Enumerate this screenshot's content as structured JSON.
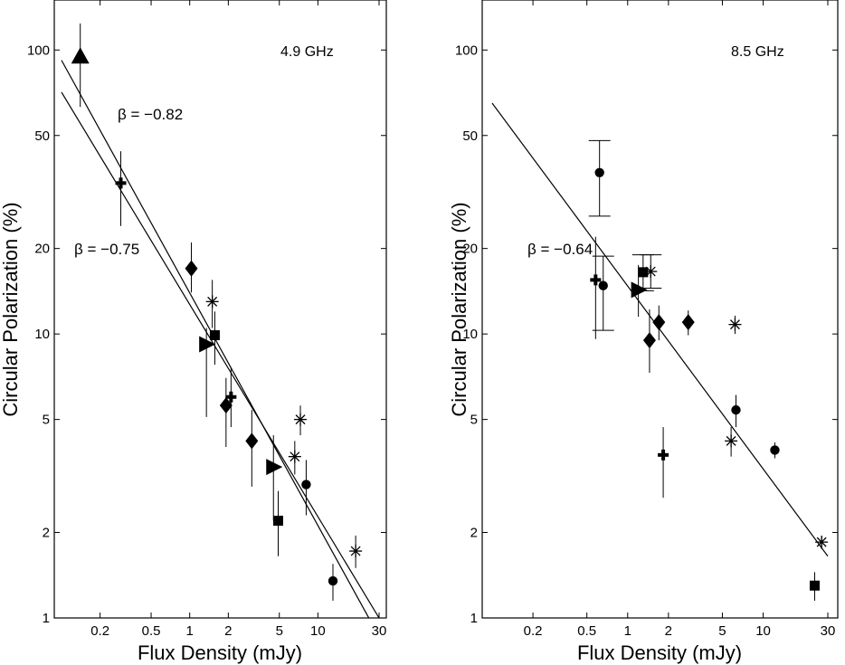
{
  "chart_data": [
    {
      "type": "scatter",
      "annotation": "4.9 GHz",
      "xlabel": "Flux Density (mJy)",
      "ylabel": "Circular Polarization (%)",
      "xscale": "log",
      "yscale": "log",
      "xlim": [
        0.1,
        30
      ],
      "ylim": [
        1,
        150
      ],
      "xticks": [
        {
          "v": 0.2,
          "t": "0.2"
        },
        {
          "v": 0.5,
          "t": "0.5"
        },
        {
          "v": 1,
          "t": "1"
        },
        {
          "v": 2,
          "t": "2"
        },
        {
          "v": 5,
          "t": "5"
        },
        {
          "v": 10,
          "t": "10"
        },
        {
          "v": 30,
          "t": "30"
        }
      ],
      "yticks": [
        {
          "v": 1,
          "t": "1"
        },
        {
          "v": 2,
          "t": "2"
        },
        {
          "v": 5,
          "t": "5"
        },
        {
          "v": 10,
          "t": "10"
        },
        {
          "v": 20,
          "t": "20"
        },
        {
          "v": 50,
          "t": "50"
        },
        {
          "v": 100,
          "t": "100"
        }
      ],
      "fits": [
        {
          "label": "β = −0.82",
          "beta": -0.82,
          "x_from": 0.1,
          "y_from": 92,
          "x_to": 30,
          "y_to": 0.86
        },
        {
          "label": "β = −0.75",
          "beta": -0.75,
          "x_from": 0.1,
          "y_from": 71,
          "x_to": 30,
          "y_to": 1.0
        }
      ],
      "points": [
        {
          "marker": "triangle-up",
          "x": 0.14,
          "y": 95,
          "ylo": 63,
          "yhi": 124
        },
        {
          "marker": "cross",
          "x": 0.29,
          "y": 34,
          "ylo": 24,
          "yhi": 44
        },
        {
          "marker": "diamond",
          "x": 1.03,
          "y": 17,
          "ylo": 14,
          "yhi": 21
        },
        {
          "marker": "asterisk",
          "x": 1.5,
          "y": 13,
          "ylo": 10.5,
          "yhi": 15.5
        },
        {
          "marker": "triangle-right",
          "x": 1.35,
          "y": 9.2,
          "ylo": 5.1,
          "yhi": 10.5
        },
        {
          "marker": "square",
          "x": 1.57,
          "y": 9.9,
          "ylo": 7.8,
          "yhi": 12
        },
        {
          "marker": "cross",
          "x": 2.1,
          "y": 6,
          "ylo": 4.7,
          "yhi": 7.6
        },
        {
          "marker": "diamond",
          "x": 1.92,
          "y": 5.6,
          "ylo": 4,
          "yhi": 7
        },
        {
          "marker": "diamond",
          "x": 3.05,
          "y": 4.2,
          "ylo": 2.9,
          "yhi": 5.4
        },
        {
          "marker": "triangle-right",
          "x": 4.5,
          "y": 3.4,
          "ylo": 2.2,
          "yhi": 4.4
        },
        {
          "marker": "asterisk",
          "x": 6.6,
          "y": 3.7,
          "ylo": 3.2,
          "yhi": 4.2
        },
        {
          "marker": "asterisk",
          "x": 7.3,
          "y": 5,
          "ylo": 4.4,
          "yhi": 5.6
        },
        {
          "marker": "circle",
          "x": 8.1,
          "y": 2.95,
          "ylo": 2.3,
          "yhi": 3.6
        },
        {
          "marker": "square",
          "x": 4.9,
          "y": 2.2,
          "ylo": 1.65,
          "yhi": 2.8
        },
        {
          "marker": "circle",
          "x": 13.1,
          "y": 1.35,
          "ylo": 1.15,
          "yhi": 1.55
        },
        {
          "marker": "asterisk",
          "x": 19.7,
          "y": 1.72,
          "ylo": 1.5,
          "yhi": 1.95
        }
      ]
    },
    {
      "type": "scatter",
      "annotation": "8.5 GHz",
      "xlabel": "Flux Density (mJy)",
      "ylabel": "Circular Polarization (%)",
      "xscale": "log",
      "yscale": "log",
      "xlim": [
        0.1,
        30
      ],
      "ylim": [
        1,
        150
      ],
      "xticks": [
        {
          "v": 0.2,
          "t": "0.2"
        },
        {
          "v": 0.5,
          "t": "0.5"
        },
        {
          "v": 1,
          "t": "1"
        },
        {
          "v": 2,
          "t": "2"
        },
        {
          "v": 5,
          "t": "5"
        },
        {
          "v": 10,
          "t": "10"
        },
        {
          "v": 30,
          "t": "30"
        }
      ],
      "yticks": [
        {
          "v": 1,
          "t": "1"
        },
        {
          "v": 2,
          "t": "2"
        },
        {
          "v": 5,
          "t": "5"
        },
        {
          "v": 10,
          "t": "10"
        },
        {
          "v": 20,
          "t": "20"
        },
        {
          "v": 50,
          "t": "50"
        },
        {
          "v": 100,
          "t": "100"
        }
      ],
      "fits": [
        {
          "label": "β = −0.64",
          "beta": -0.64,
          "x_from": 0.1,
          "y_from": 65,
          "x_to": 30,
          "y_to": 1.65
        }
      ],
      "points": [
        {
          "marker": "circle",
          "x": 0.62,
          "y": 37,
          "ylo": 26,
          "yhi": 48,
          "caps": true
        },
        {
          "marker": "cross",
          "x": 0.58,
          "y": 15.5,
          "ylo": 9.6,
          "yhi": 22
        },
        {
          "marker": "circle",
          "x": 0.66,
          "y": 14.8,
          "ylo": 10.3,
          "yhi": 18.8,
          "caps": true
        },
        {
          "marker": "square",
          "x": 1.3,
          "y": 16.5,
          "ylo": 14.2,
          "yhi": 19,
          "caps": true
        },
        {
          "marker": "asterisk",
          "x": 1.48,
          "y": 16.6,
          "ylo": 14.5,
          "yhi": 19,
          "caps": true
        },
        {
          "marker": "triangle-right",
          "x": 1.2,
          "y": 14.3,
          "ylo": 11.5,
          "yhi": 17.5
        },
        {
          "marker": "diamond",
          "x": 1.7,
          "y": 11,
          "ylo": 9.5,
          "yhi": 12.6
        },
        {
          "marker": "diamond",
          "x": 1.45,
          "y": 9.5,
          "ylo": 7.3,
          "yhi": 12.2
        },
        {
          "marker": "diamond",
          "x": 2.8,
          "y": 11,
          "ylo": 9.9,
          "yhi": 12.1
        },
        {
          "marker": "asterisk",
          "x": 6.2,
          "y": 10.8,
          "ylo": 10,
          "yhi": 11.6
        },
        {
          "marker": "circle",
          "x": 6.3,
          "y": 5.4,
          "ylo": 4.7,
          "yhi": 6.1
        },
        {
          "marker": "asterisk",
          "x": 5.8,
          "y": 4.2,
          "ylo": 3.7,
          "yhi": 4.7
        },
        {
          "marker": "cross",
          "x": 1.83,
          "y": 3.75,
          "ylo": 2.65,
          "yhi": 4.7
        },
        {
          "marker": "circle",
          "x": 12.2,
          "y": 3.9,
          "ylo": 3.65,
          "yhi": 4.15
        },
        {
          "marker": "asterisk",
          "x": 27,
          "y": 1.85,
          "ylo": 1.75,
          "yhi": 1.95
        },
        {
          "marker": "square",
          "x": 24,
          "y": 1.3,
          "ylo": 1.15,
          "yhi": 1.45
        }
      ]
    }
  ]
}
